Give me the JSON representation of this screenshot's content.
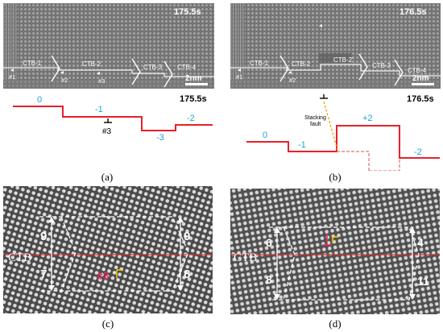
{
  "panel_a": {
    "time_label": "175.5s",
    "ctb_labels": [
      "CTB-1",
      "CTB-2",
      "CTB-3",
      "CTB-4"
    ],
    "marker_labels": [
      "#1",
      "#2",
      "#3"
    ],
    "scalebar_label": "2nm",
    "diagram": {
      "time_label": "175.5s",
      "step_labels": [
        "0",
        "-1",
        "-3",
        "-2"
      ],
      "dislocation_label": "#3"
    },
    "caption": "(a)"
  },
  "panel_b": {
    "time_label": "176.5s",
    "ctb_labels": [
      "CTB-1",
      "CTB-2",
      "CTB-2'",
      "CTB-3",
      "CTB-4"
    ],
    "marker_labels": [
      "#1",
      "#2"
    ],
    "scalebar_label": "2nm",
    "diagram": {
      "time_label": "176.5s",
      "step_labels": [
        "0",
        "-1",
        "+2",
        "-2"
      ],
      "fault_label": [
        "Stacking",
        "fault"
      ]
    },
    "caption": "(b)"
  },
  "panel_c": {
    "ctb_label": "CTB",
    "left_counts": [
      "9",
      "7"
    ],
    "right_counts": [
      "9",
      "8"
    ],
    "marker_label": "#3",
    "caption": "(c)"
  },
  "panel_d": {
    "ctb_label": "CTB",
    "left_counts": [
      "6",
      "8"
    ],
    "right_counts": [
      "4",
      "11"
    ],
    "caption": "(d)"
  },
  "colors": {
    "step_line": "#e8202a",
    "step_label": "#1ca3d8",
    "fault_line": "#f0a400",
    "marker": "#e03060",
    "burgers": "#f5c400"
  }
}
